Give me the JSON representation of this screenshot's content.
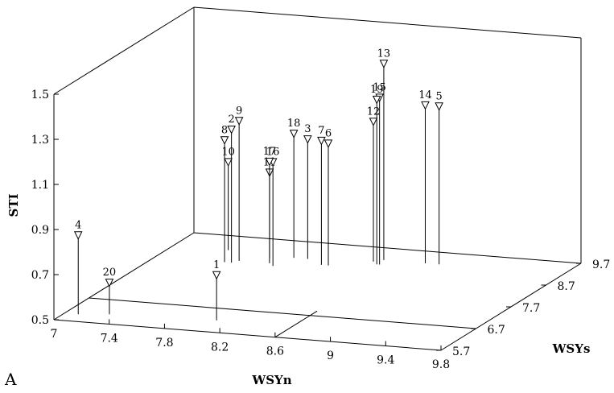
{
  "panel_label": "A",
  "chart_data": {
    "type": "scatter",
    "subtype": "3d-stem",
    "title": "",
    "xlabel": "WSYn",
    "ylabel": "WSYs",
    "zlabel": "STI",
    "xlim": [
      7,
      9.8
    ],
    "ylim": [
      5.7,
      9.7
    ],
    "zlim": [
      0.5,
      1.5
    ],
    "x_ticks": [
      "7",
      "7.4",
      "7.8",
      "8.2",
      "8.6",
      "9",
      "9.4",
      "9.8"
    ],
    "y_ticks": [
      "5.7",
      "6.7",
      "7.7",
      "8.7",
      "9.7"
    ],
    "z_ticks": [
      "0.5",
      "0.7",
      "0.9",
      "1.1",
      "1.3",
      "1.5"
    ],
    "marker": "open-triangle-down",
    "points": [
      {
        "label": "1",
        "x": 8.05,
        "y": 6.2,
        "z": 0.7
      },
      {
        "label": "2",
        "x": 7.55,
        "y": 8.6,
        "z": 1.09
      },
      {
        "label": "3",
        "x": 8.0,
        "y": 9.0,
        "z": 1.03
      },
      {
        "label": "4",
        "x": 7.1,
        "y": 6.0,
        "z": 0.85
      },
      {
        "label": "5",
        "x": 8.9,
        "y": 9.2,
        "z": 1.2
      },
      {
        "label": "6",
        "x": 8.2,
        "y": 8.8,
        "z": 1.04
      },
      {
        "label": "7",
        "x": 8.15,
        "y": 8.8,
        "z": 1.05
      },
      {
        "label": "8",
        "x": 7.5,
        "y": 8.6,
        "z": 1.04
      },
      {
        "label": "9",
        "x": 7.58,
        "y": 8.7,
        "z": 1.12
      },
      {
        "label": "10",
        "x": 7.4,
        "y": 9.1,
        "z": 0.89
      },
      {
        "label": "11",
        "x": 7.75,
        "y": 8.9,
        "z": 0.88
      },
      {
        "label": "12",
        "x": 8.45,
        "y": 9.1,
        "z": 1.12
      },
      {
        "label": "13",
        "x": 8.5,
        "y": 9.2,
        "z": 1.37
      },
      {
        "label": "14",
        "x": 8.8,
        "y": 9.2,
        "z": 1.2
      },
      {
        "label": "15",
        "x": 8.52,
        "y": 9.0,
        "z": 1.24
      },
      {
        "label": "16",
        "x": 7.85,
        "y": 8.6,
        "z": 0.96
      },
      {
        "label": "17",
        "x": 7.8,
        "y": 8.7,
        "z": 0.95
      },
      {
        "label": "18",
        "x": 7.9,
        "y": 9.0,
        "z": 1.05
      },
      {
        "label": "19",
        "x": 8.5,
        "y": 9.0,
        "z": 1.23
      },
      {
        "label": "20",
        "x": 7.3,
        "y": 6.1,
        "z": 0.64
      }
    ],
    "grid": false,
    "legend": "none"
  }
}
